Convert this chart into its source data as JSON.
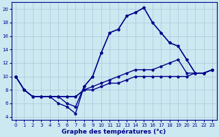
{
  "background_color": "#cce8f0",
  "grid_color": "#aaccdd",
  "line_color": "#00008b",
  "xlabel": "Graphe des températures (°c)",
  "xlim": [
    -0.5,
    23.5
  ],
  "ylim": [
    3.5,
    21.0
  ],
  "yticks": [
    4,
    6,
    8,
    10,
    12,
    14,
    16,
    18,
    20
  ],
  "xticks": [
    0,
    1,
    2,
    3,
    4,
    5,
    6,
    7,
    8,
    9,
    10,
    11,
    12,
    13,
    14,
    15,
    16,
    17,
    18,
    19,
    20,
    21,
    22,
    23
  ],
  "s1_x": [
    0,
    1,
    2,
    3,
    4,
    5,
    6,
    7,
    8,
    9,
    10,
    11,
    12,
    13,
    14,
    15,
    16,
    17,
    18,
    19,
    20,
    21,
    22,
    23
  ],
  "s1_y": [
    10,
    8,
    7,
    7,
    7,
    7,
    7,
    7,
    8,
    8,
    8.5,
    9,
    9,
    9.5,
    10,
    10,
    10,
    10,
    10,
    10,
    10,
    10.5,
    10.5,
    11
  ],
  "s2_x": [
    0,
    1,
    2,
    3,
    4,
    5,
    6,
    7,
    8,
    9,
    10,
    11,
    12,
    13,
    14,
    15,
    16,
    17,
    18,
    19,
    20,
    21,
    22,
    23
  ],
  "s2_y": [
    10,
    8,
    7,
    7,
    7,
    7,
    7,
    7,
    8,
    8.5,
    9,
    9.5,
    10,
    10.5,
    11,
    11,
    11,
    11.5,
    12,
    12.5,
    10.5,
    10.5,
    10.5,
    11
  ],
  "s3_x": [
    0,
    1,
    2,
    3,
    4,
    5,
    6,
    7,
    8,
    9,
    10,
    11,
    12,
    13,
    14,
    15,
    16,
    17,
    18,
    19,
    20,
    21,
    22,
    23
  ],
  "s3_y": [
    10,
    8,
    7,
    7,
    7,
    7,
    6,
    5.5,
    8.5,
    10,
    13.5,
    16.5,
    17,
    19,
    19.5,
    20.2,
    18,
    16.5,
    15,
    14.5,
    12.5,
    10.5,
    10.5,
    11
  ],
  "s4_x": [
    0,
    1,
    2,
    3,
    4,
    5,
    6,
    7,
    8,
    9,
    10,
    11,
    12,
    13,
    14,
    15,
    16,
    17,
    18,
    19,
    20,
    21,
    22,
    23
  ],
  "s4_y": [
    10,
    8,
    7,
    7,
    7,
    6,
    5.5,
    4.5,
    8.5,
    10,
    13.5,
    16.5,
    17,
    19,
    19.5,
    20.2,
    18,
    16.5,
    15,
    14.5,
    12.5,
    10.5,
    10.5,
    11
  ]
}
